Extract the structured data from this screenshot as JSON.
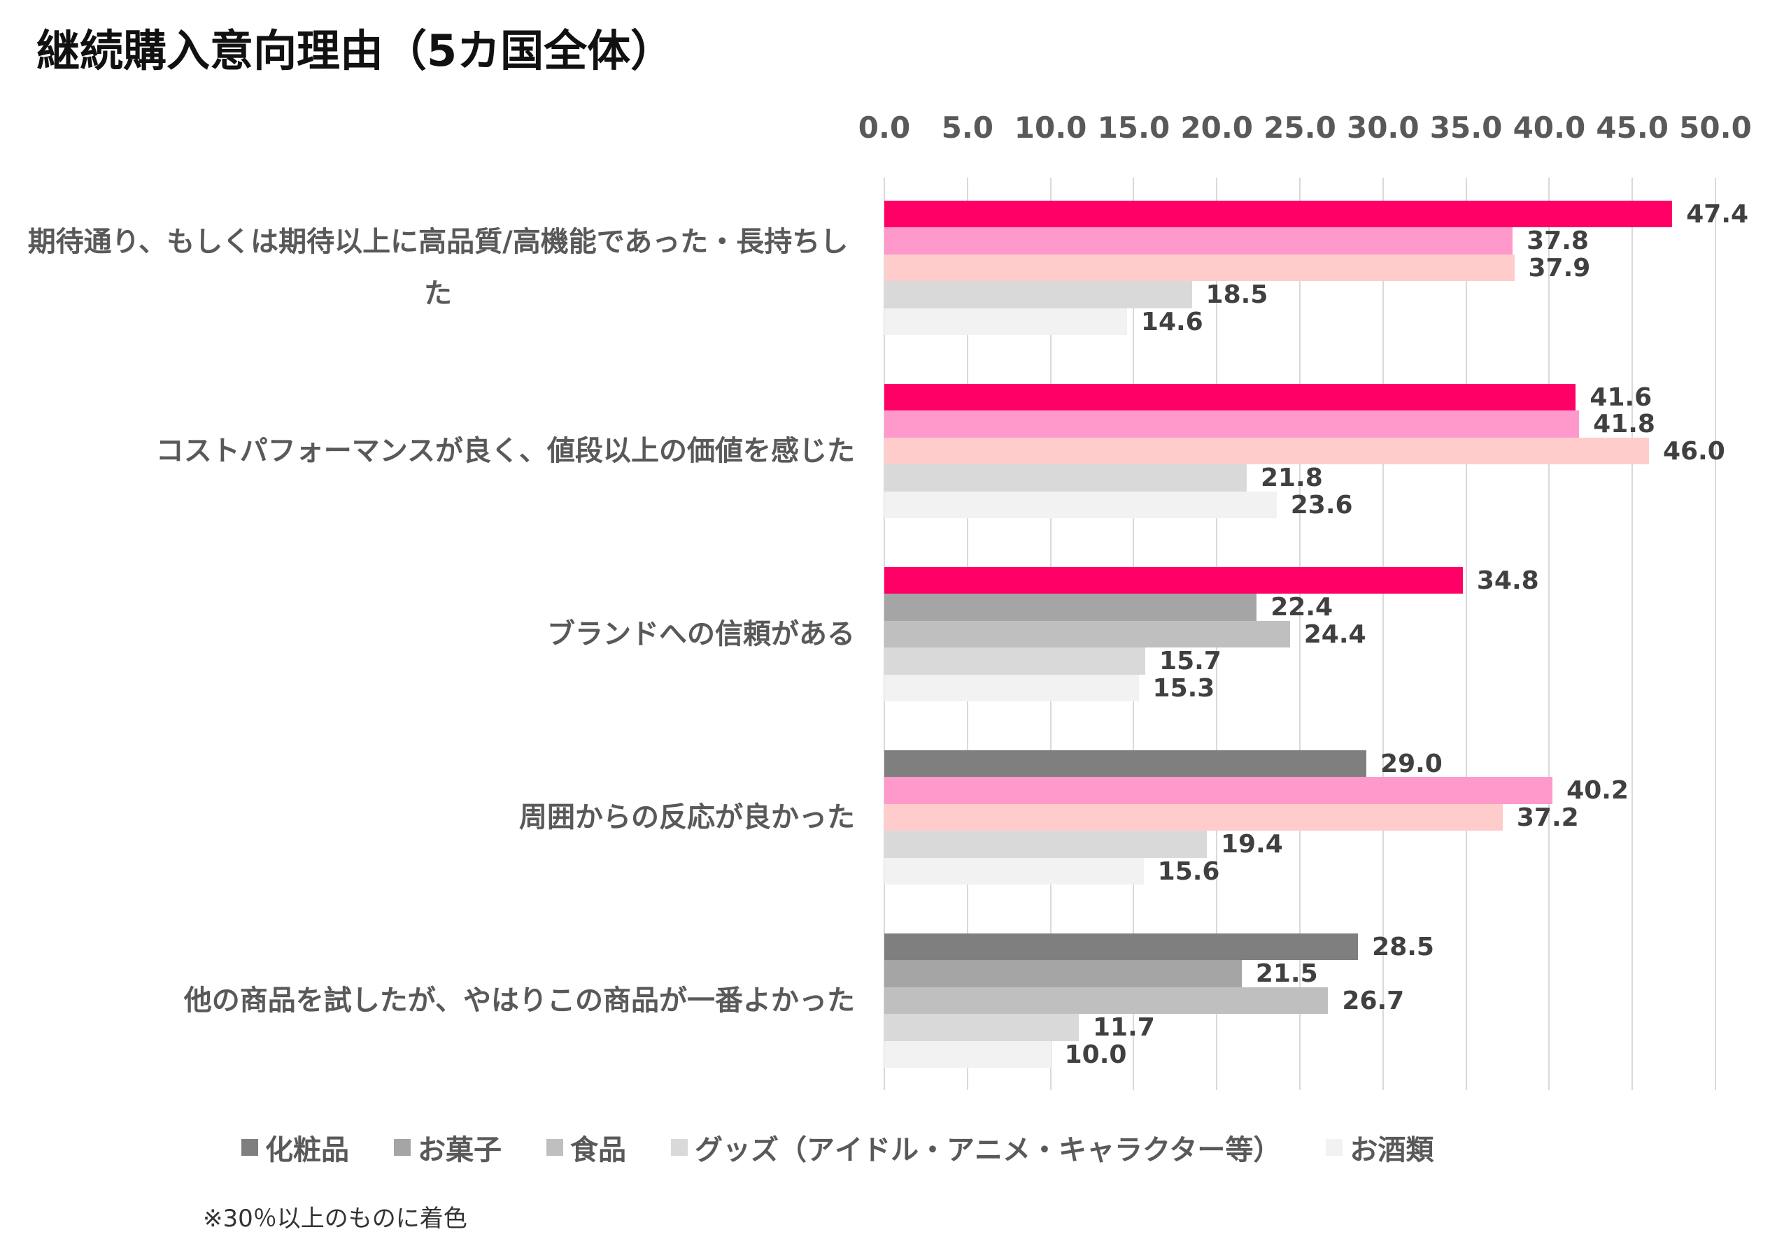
{
  "chart_data": {
    "type": "bar",
    "orientation": "horizontal",
    "title": "継続購入意向理由（5カ国全体）",
    "categories": [
      "期待通り、もしくは期待以上に高品質/高機能であった・長持ちした",
      "コストパフォーマンスが良く、値段以上の価値を感じた",
      "ブランドへの信頼がある",
      "周囲からの反応が良かった",
      "他の商品を試したが、やはりこの商品が一番よかった"
    ],
    "series": [
      {
        "name": "化粧品",
        "color": "#7f7f7f",
        "highlight_color": "#ff0066",
        "values": [
          47.4,
          41.6,
          34.8,
          29.0,
          28.5
        ]
      },
      {
        "name": "お菓子",
        "color": "#a5a5a5",
        "highlight_color": "#ff99cc",
        "values": [
          37.8,
          41.8,
          22.4,
          40.2,
          21.5
        ]
      },
      {
        "name": "食品",
        "color": "#bfbfbf",
        "highlight_color": "#ffcccc",
        "values": [
          37.9,
          46.0,
          24.4,
          37.2,
          26.7
        ]
      },
      {
        "name": "グッズ（アイドル・アニメ・キャラクター等）",
        "color": "#d9d9d9",
        "highlight_color": "#d9d9d9",
        "values": [
          18.5,
          21.8,
          15.7,
          19.4,
          11.7
        ]
      },
      {
        "name": "お酒類",
        "color": "#f2f2f2",
        "highlight_color": "#f2f2f2",
        "values": [
          14.6,
          23.6,
          15.3,
          15.6,
          10.0
        ]
      }
    ],
    "highlight_threshold": 30,
    "xlim": [
      0,
      50
    ],
    "xticks": [
      "0.0",
      "5.0",
      "10.0",
      "15.0",
      "20.0",
      "25.0",
      "30.0",
      "35.0",
      "40.0",
      "45.0",
      "50.0"
    ],
    "x_axis_position": "top",
    "grid": true,
    "legend_position": "bottom",
    "note": "※30％以上のものに着色"
  }
}
